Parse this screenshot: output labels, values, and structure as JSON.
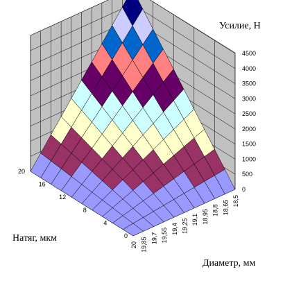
{
  "chart_data": {
    "type": "surface",
    "zlabel": "Усилие, Н",
    "ylabel": "Натяг, мкм",
    "xlabel": "Диаметр, мм",
    "z_ticks": [
      "0",
      "500",
      "1000",
      "1500",
      "2000",
      "2500",
      "3000",
      "3500",
      "4000",
      "4500"
    ],
    "y_ticks": [
      "0",
      "4",
      "8",
      "12",
      "16",
      "20"
    ],
    "x_ticks": [
      "18,5",
      "18,65",
      "18,8",
      "18,95",
      "19,1",
      "19,25",
      "19,4",
      "19,55",
      "19,7",
      "19,85",
      "20"
    ],
    "zlim": [
      0,
      4500
    ],
    "grid": true,
    "color_bands": [
      {
        "from": 0,
        "to": 500,
        "color": "#9999ff"
      },
      {
        "from": 500,
        "to": 1000,
        "color": "#993366"
      },
      {
        "from": 1000,
        "to": 1500,
        "color": "#ffffcc"
      },
      {
        "from": 1500,
        "to": 2000,
        "color": "#ccffff"
      },
      {
        "from": 2000,
        "to": 2500,
        "color": "#660066"
      },
      {
        "from": 2500,
        "to": 3000,
        "color": "#ff8080"
      },
      {
        "from": 3000,
        "to": 3500,
        "color": "#0066cc"
      },
      {
        "from": 3500,
        "to": 4000,
        "color": "#ccccff"
      },
      {
        "from": 4000,
        "to": 4500,
        "color": "#000080"
      }
    ],
    "surface_formula": "force ≈ 4500 × (natyag/20) × (20 − diameter)/1.5",
    "floor_color": "#808080",
    "wall_color": "#c0c0c0"
  }
}
